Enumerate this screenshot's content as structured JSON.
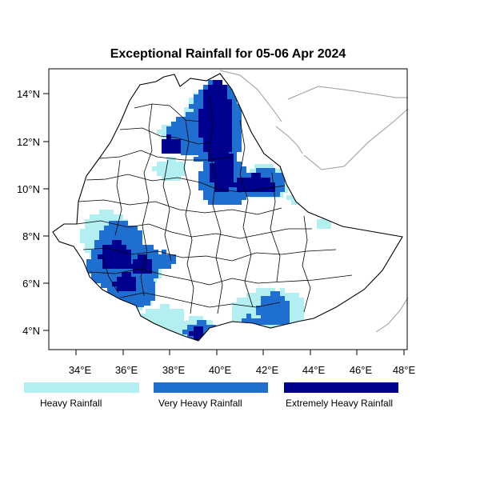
{
  "title": "Exceptional Rainfall for 05-06 Apr 2024",
  "colors": {
    "heavy": "#b3eef0",
    "very_heavy": "#1f6fd0",
    "extremely_heavy": "#00008f",
    "border": "#000000",
    "neighbor_border": "#9a9a9a"
  },
  "axes": {
    "x_ticks": [
      "34°E",
      "36°E",
      "38°E",
      "40°E",
      "42°E",
      "44°E",
      "46°E",
      "48°E"
    ],
    "y_ticks": [
      "14°N",
      "12°N",
      "10°N",
      "8°N",
      "6°N",
      "4°N"
    ]
  },
  "legend": [
    {
      "key": "heavy",
      "label": "Heavy Rainfall"
    },
    {
      "key": "very_heavy",
      "label": "Very Heavy Rainfall"
    },
    {
      "key": "extremely_heavy",
      "label": "Extremely Heavy Rainfall"
    }
  ]
}
